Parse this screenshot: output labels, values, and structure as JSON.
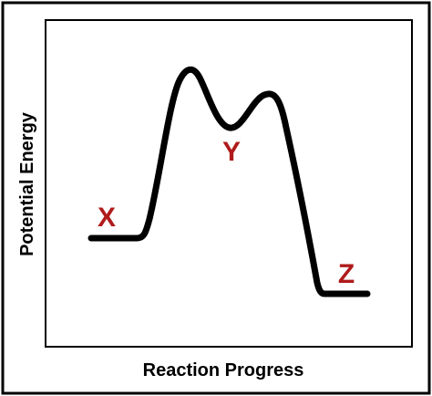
{
  "diagram": {
    "xlabel": "Reaction Progress",
    "ylabel": "Potential Energy",
    "labels": {
      "reactant": "X",
      "intermediate": "Y",
      "product": "Z"
    },
    "colors": {
      "curve": "#000000",
      "label": "#b01b1b",
      "frame": "#000000"
    }
  }
}
